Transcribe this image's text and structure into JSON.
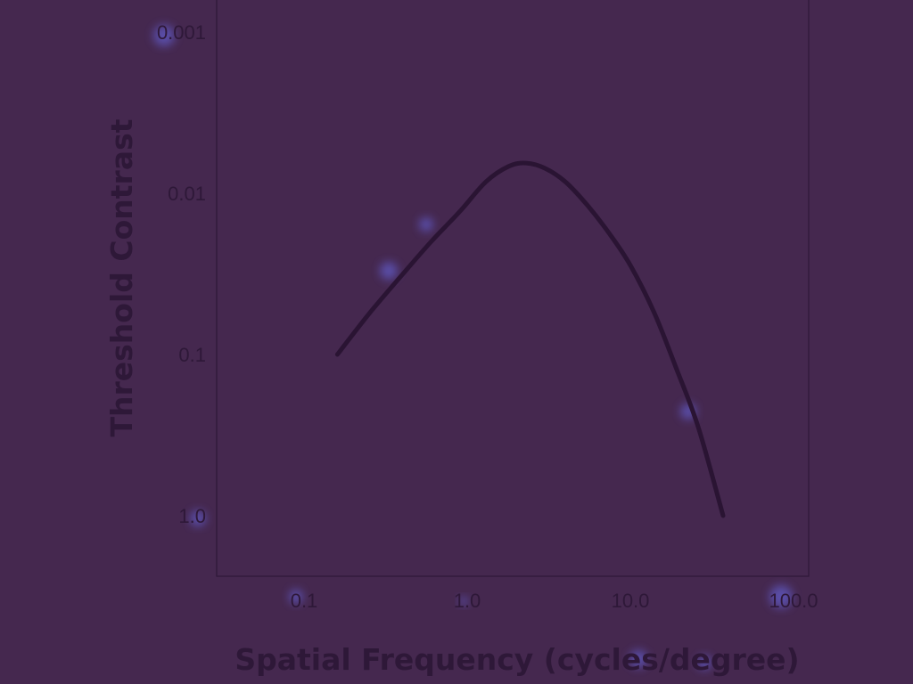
{
  "chart_data": {
    "type": "line",
    "title": "",
    "xlabel": "Spatial Frequency (cycles/degree)",
    "ylabel": "Threshold Contrast",
    "x_scale": "log",
    "y_scale": "log",
    "y_inverted": true,
    "xlim": [
      0.05,
      140
    ],
    "ylim": [
      0.001,
      1.0
    ],
    "x_ticks": [
      {
        "value": 0.1,
        "label": "0.1"
      },
      {
        "value": 1.0,
        "label": "1.0"
      },
      {
        "value": 10.0,
        "label": "10.0"
      },
      {
        "value": 100.0,
        "label": "100.0"
      }
    ],
    "y_ticks": [
      {
        "value": 0.001,
        "label": "0.001"
      },
      {
        "value": 0.01,
        "label": "0.01"
      },
      {
        "value": 0.1,
        "label": "0.1"
      },
      {
        "value": 1.0,
        "label": "1.0"
      }
    ],
    "grid": false,
    "legend": "none",
    "series": [
      {
        "color": "#2a1433",
        "x": [
          0.16,
          0.25,
          0.4,
          0.6,
          0.9,
          1.3,
          1.8,
          2.3,
          3.0,
          4.0,
          5.5,
          7.5,
          10.0,
          14.0,
          19.0,
          26.0,
          37.0
        ],
        "y": [
          0.1,
          0.056,
          0.032,
          0.02,
          0.013,
          0.0085,
          0.0068,
          0.0065,
          0.007,
          0.0085,
          0.012,
          0.018,
          0.028,
          0.055,
          0.12,
          0.28,
          1.0
        ]
      }
    ]
  },
  "colors": {
    "background": "#45284f",
    "axis": "#2e1838",
    "curve": "#2a1433",
    "glow": "#6a6cf0"
  }
}
